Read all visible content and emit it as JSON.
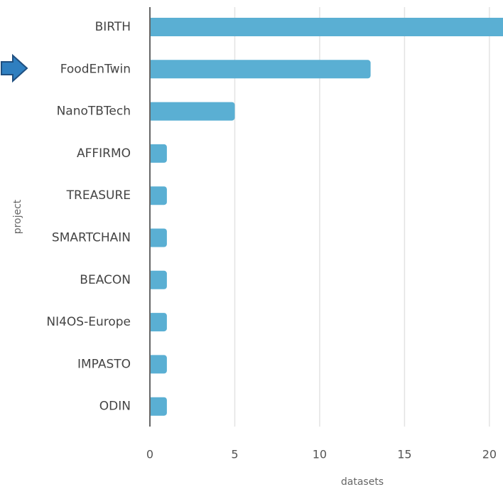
{
  "chart_data": {
    "type": "barh",
    "categories": [
      "BIRTH",
      "FoodEnTwin",
      "NanoTBTech",
      "AFFIRMO",
      "TREASURE",
      "SMARTCHAIN",
      "BEACON",
      "NI4OS-Europe",
      "IMPASTO",
      "ODIN"
    ],
    "values": [
      21,
      13,
      5,
      1,
      1,
      1,
      1,
      1,
      1,
      1
    ],
    "color": "#5aafd3",
    "xlabel": "datasets",
    "ylabel": "project",
    "xlim": [
      0,
      20.8
    ],
    "xticks": [
      0,
      5,
      10,
      15,
      20
    ],
    "grid": true
  }
}
